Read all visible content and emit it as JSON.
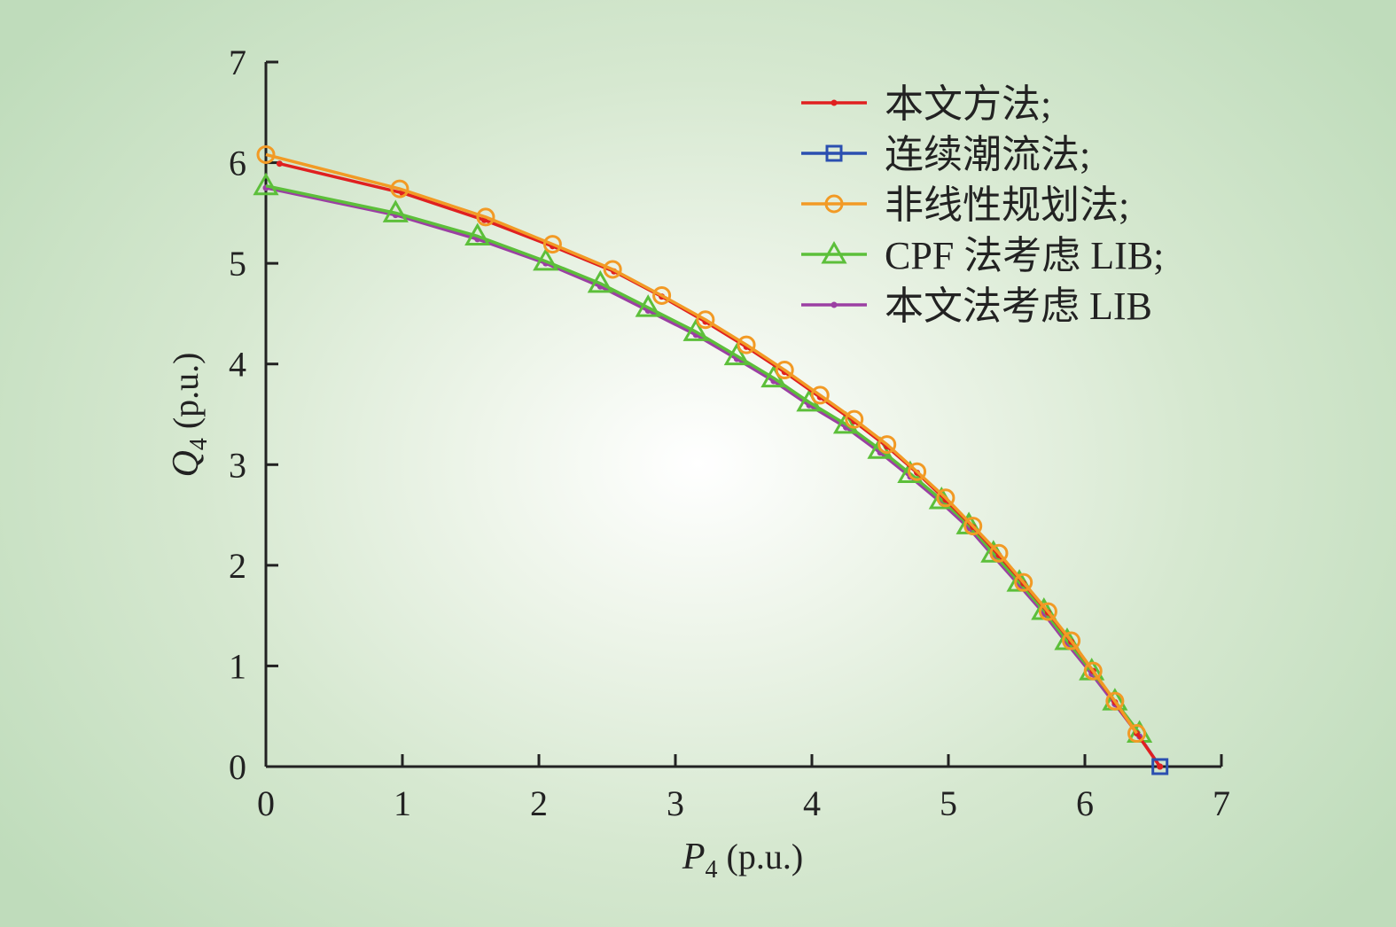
{
  "chart_data": {
    "type": "line",
    "title": "",
    "xlabel": {
      "var": "P",
      "sub": "4",
      "unit": " (p.u.)"
    },
    "ylabel": {
      "var": "Q",
      "sub": "4",
      "unit": " (p.u.)"
    },
    "xlim": [
      0,
      7
    ],
    "ylim": [
      0,
      7
    ],
    "xticks": [
      "0",
      "1",
      "2",
      "3",
      "4",
      "5",
      "6",
      "7"
    ],
    "yticks": [
      "0",
      "1",
      "2",
      "3",
      "4",
      "5",
      "6",
      "7"
    ],
    "grid": false,
    "legend_position": "top-right",
    "series": [
      {
        "name": "本文方法;",
        "color": "#e02020",
        "marker": "dot",
        "x": [
          0.1,
          1.0,
          1.6,
          2.1,
          2.55,
          2.9,
          3.22,
          3.52,
          3.8,
          4.06,
          4.31,
          4.55,
          4.77,
          4.98,
          5.18,
          5.37,
          5.55,
          5.73,
          5.9,
          6.06,
          6.22,
          6.38,
          6.55
        ],
        "y": [
          5.99,
          5.7,
          5.43,
          5.17,
          4.92,
          4.67,
          4.42,
          4.17,
          3.92,
          3.67,
          3.43,
          3.18,
          2.92,
          2.65,
          2.38,
          2.1,
          1.82,
          1.53,
          1.24,
          0.95,
          0.64,
          0.33,
          0.0
        ]
      },
      {
        "name": "连续潮流法;",
        "color": "#2b4fb0",
        "marker": "square",
        "x": [
          6.55
        ],
        "y": [
          0.0
        ]
      },
      {
        "name": "非线性规划法;",
        "color": "#f29a25",
        "marker": "circle",
        "x": [
          0.0,
          0.98,
          1.61,
          2.1,
          2.54,
          2.9,
          3.22,
          3.52,
          3.8,
          4.06,
          4.31,
          4.55,
          4.77,
          4.98,
          5.18,
          5.37,
          5.55,
          5.73,
          5.9,
          6.06,
          6.22,
          6.38
        ],
        "y": [
          6.08,
          5.74,
          5.46,
          5.19,
          4.94,
          4.68,
          4.44,
          4.19,
          3.94,
          3.69,
          3.45,
          3.2,
          2.93,
          2.67,
          2.39,
          2.12,
          1.83,
          1.54,
          1.25,
          0.95,
          0.65,
          0.33
        ]
      },
      {
        "name": "CPF 法考虑 LIB;",
        "color": "#5cbf3a",
        "marker": "triangle",
        "x": [
          0.0,
          0.95,
          1.55,
          2.05,
          2.45,
          2.8,
          3.15,
          3.45,
          3.72,
          3.98,
          4.25,
          4.5,
          4.72,
          4.95,
          5.15,
          5.33,
          5.52,
          5.7,
          5.87,
          6.05,
          6.22,
          6.4
        ],
        "y": [
          5.77,
          5.5,
          5.27,
          5.02,
          4.8,
          4.56,
          4.32,
          4.08,
          3.86,
          3.62,
          3.4,
          3.15,
          2.91,
          2.65,
          2.4,
          2.12,
          1.83,
          1.55,
          1.25,
          0.95,
          0.65,
          0.33
        ]
      },
      {
        "name": "本文法考虑 LIB",
        "color": "#9b3fa3",
        "marker": "dot",
        "x": [
          0.0,
          0.95,
          1.55,
          2.05,
          2.45,
          2.8,
          3.15,
          3.45,
          3.72,
          3.98,
          4.25,
          4.5,
          4.72,
          4.95,
          5.15,
          5.33,
          5.52,
          5.7,
          5.87,
          6.05,
          6.22,
          6.4,
          6.55
        ],
        "y": [
          5.75,
          5.48,
          5.24,
          5.0,
          4.77,
          4.53,
          4.29,
          4.05,
          3.83,
          3.59,
          3.37,
          3.12,
          2.88,
          2.62,
          2.37,
          2.09,
          1.8,
          1.52,
          1.22,
          0.92,
          0.62,
          0.3,
          0.0
        ]
      }
    ]
  }
}
